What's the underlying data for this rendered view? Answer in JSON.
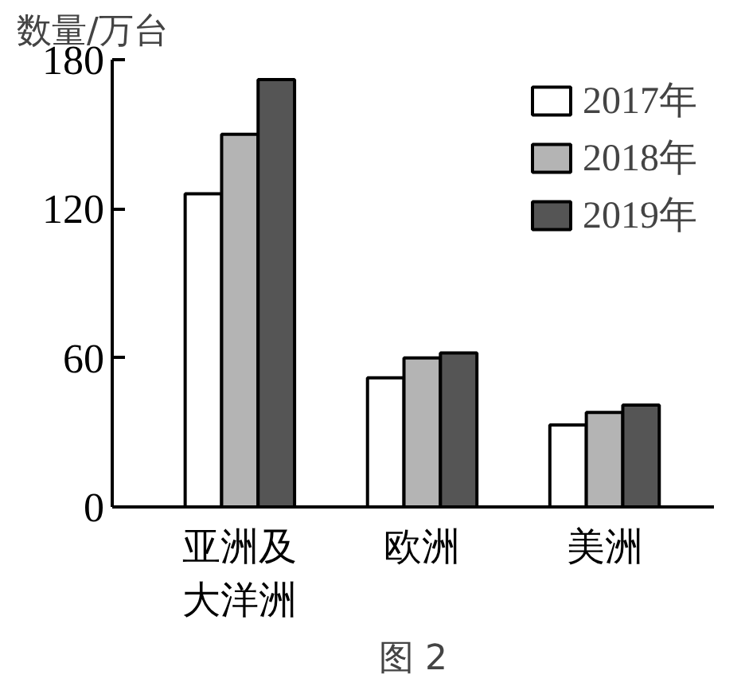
{
  "chart_data": {
    "type": "bar",
    "ylabel": "数量/万台",
    "categories": [
      "亚洲及大洋洲",
      "欧洲",
      "美洲"
    ],
    "series": [
      {
        "name": "2017年",
        "color": "#ffffff",
        "values": [
          126,
          52,
          33
        ]
      },
      {
        "name": "2018年",
        "color": "#b4b4b4",
        "values": [
          150,
          60,
          38
        ]
      },
      {
        "name": "2019年",
        "color": "#555555",
        "values": [
          172,
          62,
          41
        ]
      }
    ],
    "ylim": [
      0,
      180
    ],
    "yticks": [
      0,
      60,
      120,
      180
    ],
    "grid": false,
    "legend": "top right",
    "annotations": [
      "图 2"
    ]
  }
}
